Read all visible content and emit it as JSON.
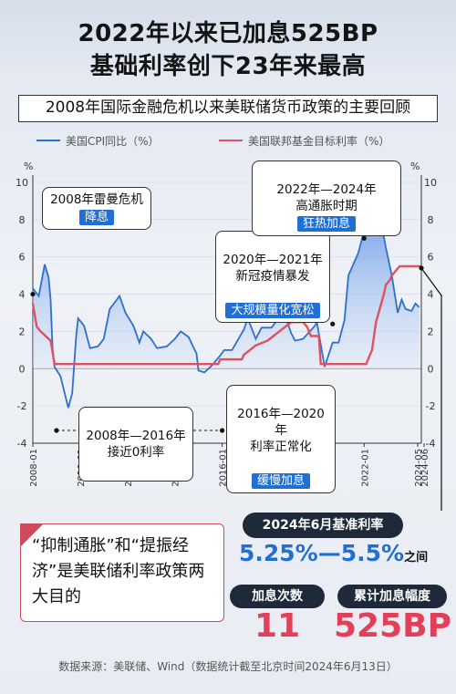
{
  "header": {
    "title_line1": "2022年以来已加息525BP",
    "title_line2": "基础利率创下23年来最高",
    "subtitle": "2008年国际金融危机以来美联储货币政策的主要回顾"
  },
  "chart_data": {
    "type": "line",
    "ylim": [
      -4,
      10
    ],
    "yticks": [
      -4,
      -2,
      0,
      2,
      4,
      6,
      8,
      10
    ],
    "y_unit_left": "%",
    "y_unit_right": "%",
    "xlim": [
      "2008-01",
      "2024-06"
    ],
    "xticks": [
      "2008-01",
      "2010-01",
      "2012-01",
      "2014-01",
      "2016-01",
      "2018-01",
      "2020-01",
      "2022-01",
      "2024-06",
      "2024-05"
    ],
    "series": [
      {
        "name": "美国CPI同比（%）",
        "color": "#2f6fce",
        "points": [
          [
            "2008-01",
            4.3
          ],
          [
            "2008-04",
            3.9
          ],
          [
            "2008-07",
            5.6
          ],
          [
            "2008-09",
            4.9
          ],
          [
            "2008-10",
            3.7
          ],
          [
            "2008-11",
            1.1
          ],
          [
            "2008-12",
            0.1
          ],
          [
            "2009-03",
            -0.4
          ],
          [
            "2009-07",
            -2.1
          ],
          [
            "2009-09",
            -1.3
          ],
          [
            "2009-11",
            1.8
          ],
          [
            "2009-12",
            2.7
          ],
          [
            "2010-03",
            2.3
          ],
          [
            "2010-06",
            1.1
          ],
          [
            "2010-10",
            1.2
          ],
          [
            "2011-01",
            1.6
          ],
          [
            "2011-04",
            3.2
          ],
          [
            "2011-09",
            3.9
          ],
          [
            "2011-12",
            3.0
          ],
          [
            "2012-04",
            2.3
          ],
          [
            "2012-07",
            1.4
          ],
          [
            "2012-09",
            2.0
          ],
          [
            "2013-01",
            1.6
          ],
          [
            "2013-04",
            1.1
          ],
          [
            "2013-09",
            1.2
          ],
          [
            "2014-01",
            1.6
          ],
          [
            "2014-04",
            2.0
          ],
          [
            "2014-08",
            1.7
          ],
          [
            "2014-12",
            0.8
          ],
          [
            "2015-01",
            -0.1
          ],
          [
            "2015-04",
            -0.2
          ],
          [
            "2015-08",
            0.2
          ],
          [
            "2015-12",
            0.7
          ],
          [
            "2016-02",
            1.0
          ],
          [
            "2016-06",
            1.0
          ],
          [
            "2016-12",
            2.1
          ],
          [
            "2017-02",
            2.7
          ],
          [
            "2017-06",
            1.6
          ],
          [
            "2017-09",
            2.2
          ],
          [
            "2018-02",
            2.2
          ],
          [
            "2018-07",
            2.9
          ],
          [
            "2018-10",
            2.5
          ],
          [
            "2018-12",
            1.9
          ],
          [
            "2019-02",
            1.5
          ],
          [
            "2019-06",
            1.6
          ],
          [
            "2019-12",
            2.3
          ],
          [
            "2020-01",
            2.5
          ],
          [
            "2020-05",
            0.1
          ],
          [
            "2020-09",
            1.4
          ],
          [
            "2020-12",
            1.4
          ],
          [
            "2021-03",
            2.6
          ],
          [
            "2021-05",
            5.0
          ],
          [
            "2021-10",
            6.2
          ],
          [
            "2021-12",
            7.0
          ],
          [
            "2022-03",
            8.5
          ],
          [
            "2022-06",
            9.1
          ],
          [
            "2022-09",
            8.2
          ],
          [
            "2022-12",
            6.5
          ],
          [
            "2023-03",
            5.0
          ],
          [
            "2023-06",
            3.0
          ],
          [
            "2023-08",
            3.7
          ],
          [
            "2023-10",
            3.2
          ],
          [
            "2024-01",
            3.1
          ],
          [
            "2024-03",
            3.5
          ],
          [
            "2024-05",
            3.3
          ]
        ]
      },
      {
        "name": "美国联邦基金目标利率（%）",
        "color": "#e05060",
        "points": [
          [
            "2008-01",
            3.5
          ],
          [
            "2008-03",
            2.25
          ],
          [
            "2008-05",
            2.0
          ],
          [
            "2008-10",
            1.5
          ],
          [
            "2008-12",
            0.25
          ],
          [
            "2015-11",
            0.25
          ],
          [
            "2015-12",
            0.5
          ],
          [
            "2016-11",
            0.5
          ],
          [
            "2016-12",
            0.75
          ],
          [
            "2017-03",
            1.0
          ],
          [
            "2017-06",
            1.25
          ],
          [
            "2017-12",
            1.5
          ],
          [
            "2018-03",
            1.75
          ],
          [
            "2018-06",
            2.0
          ],
          [
            "2018-09",
            2.25
          ],
          [
            "2018-12",
            2.5
          ],
          [
            "2019-06",
            2.5
          ],
          [
            "2019-08",
            2.25
          ],
          [
            "2019-10",
            1.75
          ],
          [
            "2020-02",
            1.75
          ],
          [
            "2020-03",
            0.25
          ],
          [
            "2022-02",
            0.25
          ],
          [
            "2022-03",
            0.5
          ],
          [
            "2022-05",
            1.0
          ],
          [
            "2022-06",
            1.75
          ],
          [
            "2022-07",
            2.5
          ],
          [
            "2022-09",
            3.25
          ],
          [
            "2022-11",
            4.0
          ],
          [
            "2022-12",
            4.5
          ],
          [
            "2023-02",
            4.75
          ],
          [
            "2023-03",
            5.0
          ],
          [
            "2023-05",
            5.25
          ],
          [
            "2023-07",
            5.5
          ],
          [
            "2024-06",
            5.5
          ]
        ]
      }
    ],
    "annotations": [
      {
        "title": "2008年雷曼危机",
        "tag": "降息"
      },
      {
        "title": "2020年—2021年\n新冠疫情暴发",
        "tag": "大规模量化宽松"
      },
      {
        "title": "2022年—2024年\n高通胀时期",
        "tag": "狂热加息"
      },
      {
        "title": "2008年—2016年\n接近0利率",
        "tag": ""
      },
      {
        "title": "2016年—2020年\n利率正常化",
        "tag": "缓慢加息"
      }
    ]
  },
  "summary": {
    "rate_label": "2024年6月基准利率",
    "rate_value": "5.25%—5.5%",
    "rate_suffix": "之间",
    "hikes_label": "加息次数",
    "hikes_value": "11",
    "total_label": "累计加息幅度",
    "total_value": "525BP",
    "note": "“抑制通胀”和“提振经济”是美联储利率政策两大目的"
  },
  "source": "数据来源：美联储、Wind（数据统计截至北京时间2024年6月13日）",
  "colors": {
    "accent_blue": "#1f6fd6",
    "accent_red": "#e0405a",
    "dark": "#1e2a3a"
  }
}
